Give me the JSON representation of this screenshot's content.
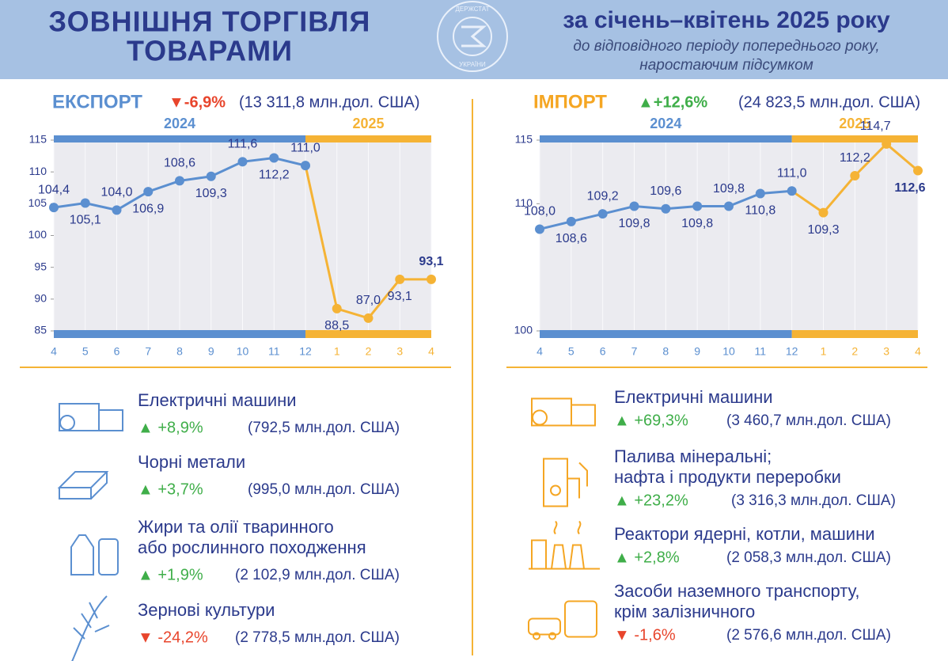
{
  "header": {
    "title_lines": [
      "ЗОВНІШНЯ ТОРГІВЛЯ",
      "ТОВАРАМИ"
    ],
    "period": "за січень–квітень 2025 року",
    "note_lines": [
      "до відповідного періоду попереднього року,",
      "наростаючим підсумком"
    ],
    "logo_top": "ДЕРЖСТАТ",
    "logo_bottom": "УКРАЇНИ"
  },
  "chart_data": [
    {
      "type": "line",
      "title": "ЕКСПОРТ",
      "title_color": "#5b8fd0",
      "change": "▼-6,9%",
      "change_color": "#e8452c",
      "total": "(13 311,8  млн.дол. США)",
      "periods": [
        "2024",
        "2025"
      ],
      "period_colors": [
        "#5b8fd0",
        "#f5b335"
      ],
      "categories": [
        "4",
        "5",
        "6",
        "7",
        "8",
        "9",
        "10",
        "11",
        "12",
        "1",
        "2",
        "3",
        "4"
      ],
      "series": [
        {
          "values": [
            104.4,
            105.1,
            104.0,
            106.9,
            108.6,
            109.3,
            111.6,
            112.2,
            111.0,
            88.5,
            87.0,
            93.1,
            93.1
          ],
          "value_labels": [
            "104,4",
            "105,1",
            "104,0",
            "106,9",
            "108,6",
            "109,3",
            "111,6",
            "112,2",
            "111,0",
            "88,5",
            "87,0",
            "93,1",
            "93,1"
          ]
        }
      ],
      "ylim": [
        85,
        115
      ],
      "yticks": [
        85,
        90,
        95,
        100,
        105,
        110,
        115
      ]
    },
    {
      "type": "line",
      "title": "ІМПОРТ",
      "title_color": "#f5a623",
      "change": "▲+12,6%",
      "change_color": "#3fae49",
      "total": "(24 823,5 млн.дол. США)",
      "periods": [
        "2024",
        "2025"
      ],
      "period_colors": [
        "#5b8fd0",
        "#f5b335"
      ],
      "categories": [
        "4",
        "5",
        "6",
        "7",
        "8",
        "9",
        "10",
        "11",
        "12",
        "1",
        "2",
        "3",
        "4"
      ],
      "series": [
        {
          "values": [
            108.0,
            108.6,
            109.2,
            109.8,
            109.6,
            109.8,
            109.8,
            110.8,
            111.0,
            109.3,
            112.2,
            114.7,
            112.6
          ],
          "value_labels": [
            "108,0",
            "108,6",
            "109,2",
            "109,8",
            "109,6",
            "109,8",
            "109,8",
            "110,8",
            "111,0",
            "109,3",
            "112,2",
            "114,7",
            "112,6"
          ]
        }
      ],
      "ylim": [
        100,
        115
      ],
      "yticks": [
        100,
        110,
        115
      ]
    }
  ],
  "export_items": [
    {
      "name_lines": [
        "Електричні машини"
      ],
      "change": "▲ +8,9%",
      "change_color": "#3fae49",
      "amount": "(792,5 млн.дол. США)"
    },
    {
      "name_lines": [
        "Чорні метали"
      ],
      "change": "▲ +3,7%",
      "change_color": "#3fae49",
      "amount": "(995,0 млн.дол. США)"
    },
    {
      "name_lines": [
        "Жири та олії тваринного",
        "або рослинного походження"
      ],
      "change": "▲ +1,9%",
      "change_color": "#3fae49",
      "amount": "(2 102,9 млн.дол. США)"
    },
    {
      "name_lines": [
        "Зернові культури"
      ],
      "change": "▼ -24,2%",
      "change_color": "#e8452c",
      "amount": "(2 778,5 млн.дол. США)"
    }
  ],
  "import_items": [
    {
      "name_lines": [
        "Електричні машини"
      ],
      "change": "▲ +69,3%",
      "change_color": "#3fae49",
      "amount": "(3 460,7 млн.дол. США)"
    },
    {
      "name_lines": [
        "Палива мінеральні;",
        "нафта і продукти переробки"
      ],
      "change": "▲ +23,2%",
      "change_color": "#3fae49",
      "amount": "(3 316,3 млн.дол. США)"
    },
    {
      "name_lines": [
        "Реактори ядерні, котли, машини"
      ],
      "change": "▲ +2,8%",
      "change_color": "#3fae49",
      "amount": "(2 058,3 млн.дол. США)"
    },
    {
      "name_lines": [
        "Засоби наземного транспорту,",
        "крім залізничного"
      ],
      "change": "▼ -1,6%",
      "change_color": "#e8452c",
      "amount": "(2 576,6 млн.дол. США)"
    }
  ]
}
